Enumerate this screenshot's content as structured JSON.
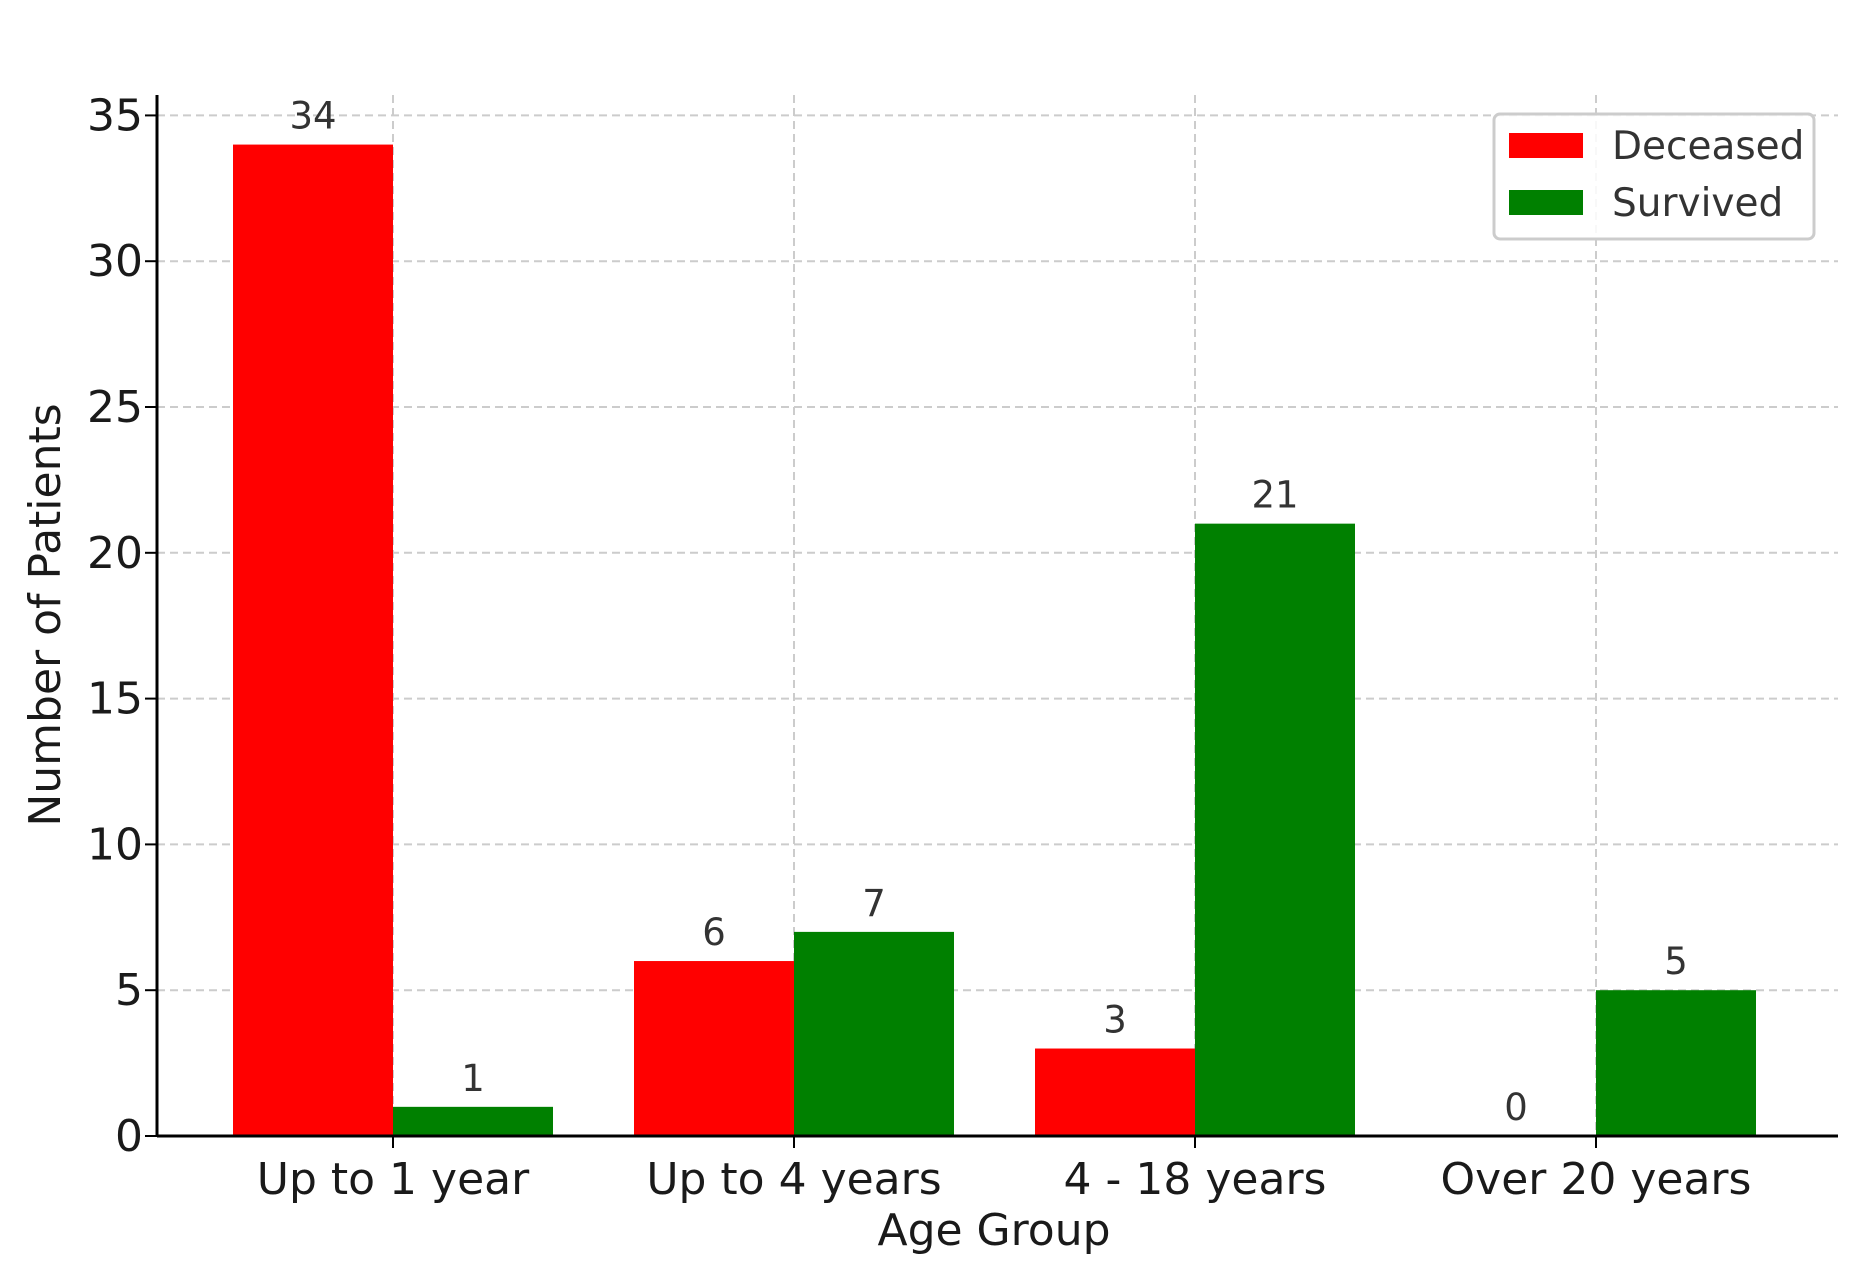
{
  "chart_data": {
    "type": "bar",
    "title": "",
    "xlabel": "Age Group",
    "ylabel": "Number of Patients",
    "categories": [
      "Up to 1 year",
      "Up to 4 years",
      "4 - 18 years",
      "Over 20 years"
    ],
    "series": [
      {
        "name": "Deceased",
        "color": "#ff0000",
        "values": [
          34,
          6,
          3,
          0
        ]
      },
      {
        "name": "Survived",
        "color": "#008000",
        "values": [
          1,
          7,
          21,
          5
        ]
      }
    ],
    "ylim": [
      0,
      35.7
    ],
    "yticks": [
      0,
      5,
      10,
      15,
      20,
      25,
      30,
      35
    ],
    "grid": true,
    "legend": "top-right",
    "data_labels": true
  }
}
